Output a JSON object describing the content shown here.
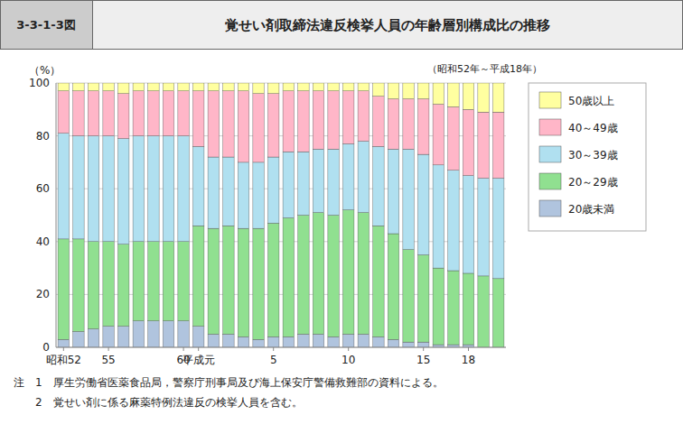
{
  "chart_data": {
    "type": "bar",
    "stacked": true,
    "figure_label": "3-3-1-3図",
    "title": "覚せい剤取締法違反検挙人員の年齢層別構成比の推移",
    "subtitle": "（昭和52年～平成18年）",
    "y_label": "（%）",
    "notes": [
      "注　1　厚生労働省医薬食品局，警察庁刑事局及び海上保安庁警備救難部の資料による。",
      "　　2　覚せい剤に係る麻薬特例法違反の検挙人員を含む。"
    ],
    "categories": [
      "昭和52",
      null,
      null,
      "55",
      null,
      null,
      null,
      null,
      "60",
      "平成元",
      null,
      null,
      null,
      null,
      "5",
      null,
      null,
      null,
      null,
      "10",
      null,
      null,
      null,
      null,
      "15",
      null,
      null,
      "18",
      null,
      null
    ],
    "series": [
      {
        "name": "20歳未満",
        "color": "#b0c4de",
        "values": [
          3,
          6,
          7,
          8,
          8,
          10,
          10,
          10,
          10,
          8,
          5,
          5,
          4,
          3,
          4,
          4,
          5,
          5,
          4,
          5,
          5,
          4,
          3,
          2,
          2,
          1,
          1,
          1,
          0,
          0
        ]
      },
      {
        "name": "20～29歳",
        "color": "#90e090",
        "values": [
          38,
          35,
          33,
          32,
          31,
          30,
          30,
          30,
          30,
          38,
          40,
          41,
          41,
          42,
          43,
          45,
          45,
          46,
          46,
          47,
          46,
          42,
          40,
          35,
          33,
          29,
          28,
          27,
          27,
          26
        ]
      },
      {
        "name": "30～39歳",
        "color": "#b0e0f0",
        "values": [
          40,
          39,
          40,
          40,
          40,
          40,
          40,
          40,
          40,
          30,
          27,
          26,
          25,
          25,
          25,
          25,
          24,
          24,
          25,
          25,
          27,
          30,
          32,
          38,
          38,
          39,
          38,
          37,
          37,
          38
        ]
      },
      {
        "name": "40～49歳",
        "color": "#ffb6c8",
        "values": [
          16,
          17,
          17,
          17,
          17,
          17,
          17,
          17,
          17,
          21,
          25,
          25,
          27,
          26,
          24,
          23,
          23,
          22,
          22,
          20,
          19,
          19,
          19,
          19,
          21,
          23,
          24,
          25,
          25,
          25
        ]
      },
      {
        "name": "50歳以上",
        "color": "#ffffa0",
        "values": [
          3,
          3,
          3,
          3,
          4,
          3,
          3,
          3,
          3,
          3,
          3,
          3,
          3,
          4,
          4,
          3,
          3,
          3,
          3,
          3,
          3,
          5,
          6,
          6,
          6,
          8,
          9,
          10,
          11,
          11
        ]
      }
    ],
    "ylim": [
      0,
      100
    ],
    "yticks": [
      0,
      20,
      40,
      60,
      80,
      100
    ],
    "grid": true,
    "legend": "right"
  }
}
